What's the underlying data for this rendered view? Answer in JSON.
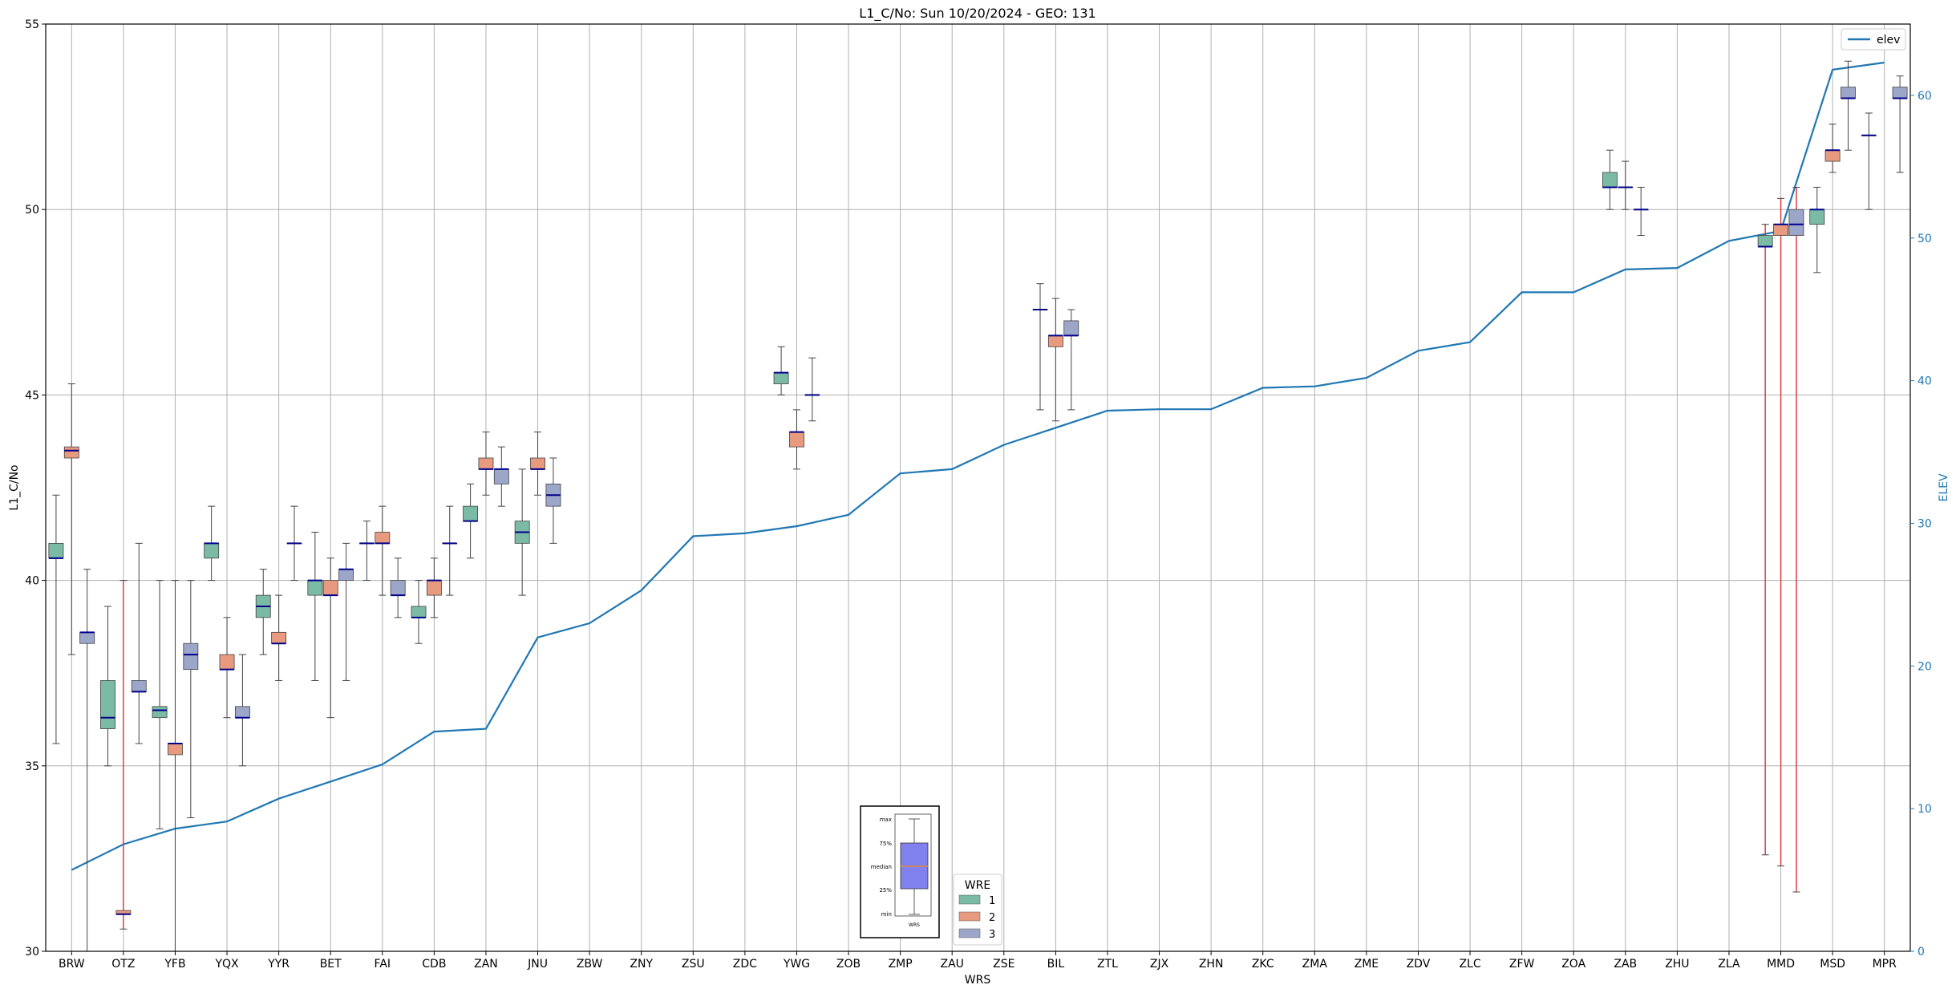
{
  "chart_data": {
    "type": "box",
    "title": "L1_C/No: Sun 10/20/2024 - GEO: 131",
    "xlabel": "WRS",
    "ylabel": "L1_C/No",
    "y2label": "ELEV",
    "ylim": [
      30,
      55
    ],
    "y2lim": [
      0,
      65
    ],
    "yticks": [
      30,
      35,
      40,
      45,
      50,
      55
    ],
    "y2ticks": [
      0,
      10,
      20,
      30,
      40,
      50,
      60
    ],
    "grid": true,
    "categories": [
      "BRW",
      "OTZ",
      "YFB",
      "YQX",
      "YYR",
      "BET",
      "FAI",
      "CDB",
      "ZAN",
      "JNU",
      "ZBW",
      "ZNY",
      "ZSU",
      "ZDC",
      "YWG",
      "ZOB",
      "ZMP",
      "ZAU",
      "ZSE",
      "BIL",
      "ZTL",
      "ZJX",
      "ZHN",
      "ZKC",
      "ZMA",
      "ZME",
      "ZDV",
      "ZLC",
      "ZFW",
      "ZOA",
      "ZAB",
      "ZHU",
      "ZLA",
      "MMD",
      "MSD",
      "MPR"
    ],
    "wre_legend": {
      "title": "WRE",
      "entries": [
        {
          "label": "1",
          "color": "#7bbba5"
        },
        {
          "label": "2",
          "color": "#e89a7e"
        },
        {
          "label": "3",
          "color": "#9ba6c9"
        }
      ]
    },
    "elev_series": {
      "name": "elev",
      "color": "#1f77b4",
      "values": [
        5.7,
        7.5,
        8.6,
        9.1,
        10.7,
        11.9,
        13.1,
        15.4,
        15.6,
        22.0,
        23.0,
        25.3,
        29.1,
        29.3,
        29.8,
        30.6,
        33.5,
        33.8,
        35.5,
        36.7,
        37.9,
        38.0,
        38.0,
        39.5,
        39.6,
        40.2,
        42.1,
        42.7,
        46.2,
        46.2,
        47.8,
        47.9,
        49.8,
        50.5,
        61.8,
        62.3
      ]
    },
    "boxes": [
      {
        "cat": "BRW",
        "wre": 1,
        "min": 35.6,
        "q1": 40.6,
        "median": 40.6,
        "q3": 41.0,
        "max": 42.3
      },
      {
        "cat": "BRW",
        "wre": 2,
        "min": 38.0,
        "q1": 43.3,
        "median": 43.5,
        "q3": 43.6,
        "max": 45.3
      },
      {
        "cat": "BRW",
        "wre": 3,
        "min": 30.0,
        "q1": 38.3,
        "median": 38.6,
        "q3": 38.6,
        "max": 40.3
      },
      {
        "cat": "OTZ",
        "wre": 1,
        "min": 35.0,
        "q1": 36.0,
        "median": 36.3,
        "q3": 37.3,
        "max": 39.3
      },
      {
        "cat": "OTZ",
        "wre": 2,
        "min": 30.6,
        "q1": 31.0,
        "median": 31.0,
        "q3": 31.1,
        "max": 40.0,
        "highlight": true
      },
      {
        "cat": "OTZ",
        "wre": 3,
        "min": 35.6,
        "q1": 37.0,
        "median": 37.0,
        "q3": 37.3,
        "max": 41.0
      },
      {
        "cat": "YFB",
        "wre": 1,
        "min": 33.3,
        "q1": 36.3,
        "median": 36.5,
        "q3": 36.6,
        "max": 40.0
      },
      {
        "cat": "YFB",
        "wre": 2,
        "min": 30.0,
        "q1": 35.3,
        "median": 35.6,
        "q3": 35.6,
        "max": 40.0
      },
      {
        "cat": "YFB",
        "wre": 3,
        "min": 33.6,
        "q1": 37.6,
        "median": 38.0,
        "q3": 38.3,
        "max": 40.0
      },
      {
        "cat": "YQX",
        "wre": 1,
        "min": 40.0,
        "q1": 40.6,
        "median": 41.0,
        "q3": 41.0,
        "max": 42.0
      },
      {
        "cat": "YQX",
        "wre": 2,
        "min": 36.3,
        "q1": 37.6,
        "median": 37.6,
        "q3": 38.0,
        "max": 39.0
      },
      {
        "cat": "YQX",
        "wre": 3,
        "min": 35.0,
        "q1": 36.3,
        "median": 36.3,
        "q3": 36.6,
        "max": 38.0
      },
      {
        "cat": "YYR",
        "wre": 1,
        "min": 38.0,
        "q1": 39.0,
        "median": 39.3,
        "q3": 39.6,
        "max": 40.3
      },
      {
        "cat": "YYR",
        "wre": 2,
        "min": 37.3,
        "q1": 38.3,
        "median": 38.3,
        "q3": 38.6,
        "max": 39.6
      },
      {
        "cat": "YYR",
        "wre": 3,
        "min": 40.0,
        "q1": 41.0,
        "median": 41.0,
        "q3": 41.0,
        "max": 42.0
      },
      {
        "cat": "BET",
        "wre": 1,
        "min": 37.3,
        "q1": 39.6,
        "median": 40.0,
        "q3": 40.0,
        "max": 41.3
      },
      {
        "cat": "BET",
        "wre": 2,
        "min": 36.3,
        "q1": 39.6,
        "median": 39.6,
        "q3": 40.0,
        "max": 40.6
      },
      {
        "cat": "BET",
        "wre": 3,
        "min": 37.3,
        "q1": 40.0,
        "median": 40.3,
        "q3": 40.3,
        "max": 41.0
      },
      {
        "cat": "FAI",
        "wre": 1,
        "min": 40.0,
        "q1": 41.0,
        "median": 41.0,
        "q3": 41.0,
        "max": 41.6
      },
      {
        "cat": "FAI",
        "wre": 2,
        "min": 39.6,
        "q1": 41.0,
        "median": 41.0,
        "q3": 41.3,
        "max": 42.0
      },
      {
        "cat": "FAI",
        "wre": 3,
        "min": 39.0,
        "q1": 39.6,
        "median": 39.6,
        "q3": 40.0,
        "max": 40.6
      },
      {
        "cat": "CDB",
        "wre": 1,
        "min": 38.3,
        "q1": 39.0,
        "median": 39.0,
        "q3": 39.3,
        "max": 40.0
      },
      {
        "cat": "CDB",
        "wre": 2,
        "min": 39.0,
        "q1": 39.6,
        "median": 40.0,
        "q3": 40.0,
        "max": 40.6
      },
      {
        "cat": "CDB",
        "wre": 3,
        "min": 39.6,
        "q1": 41.0,
        "median": 41.0,
        "q3": 41.0,
        "max": 42.0
      },
      {
        "cat": "ZAN",
        "wre": 1,
        "min": 40.6,
        "q1": 41.6,
        "median": 41.6,
        "q3": 42.0,
        "max": 42.6
      },
      {
        "cat": "ZAN",
        "wre": 2,
        "min": 42.3,
        "q1": 43.0,
        "median": 43.0,
        "q3": 43.3,
        "max": 44.0
      },
      {
        "cat": "ZAN",
        "wre": 3,
        "min": 42.0,
        "q1": 42.6,
        "median": 43.0,
        "q3": 43.0,
        "max": 43.6
      },
      {
        "cat": "JNU",
        "wre": 1,
        "min": 39.6,
        "q1": 41.0,
        "median": 41.3,
        "q3": 41.6,
        "max": 43.0
      },
      {
        "cat": "JNU",
        "wre": 2,
        "min": 42.3,
        "q1": 43.0,
        "median": 43.0,
        "q3": 43.3,
        "max": 44.0
      },
      {
        "cat": "JNU",
        "wre": 3,
        "min": 41.0,
        "q1": 42.0,
        "median": 42.3,
        "q3": 42.6,
        "max": 43.3
      },
      {
        "cat": "YWG",
        "wre": 1,
        "min": 45.0,
        "q1": 45.3,
        "median": 45.6,
        "q3": 45.6,
        "max": 46.3
      },
      {
        "cat": "YWG",
        "wre": 2,
        "min": 43.0,
        "q1": 43.6,
        "median": 44.0,
        "q3": 44.0,
        "max": 44.6
      },
      {
        "cat": "YWG",
        "wre": 3,
        "min": 44.3,
        "q1": 45.0,
        "median": 45.0,
        "q3": 45.0,
        "max": 46.0
      },
      {
        "cat": "BIL",
        "wre": 1,
        "min": 44.6,
        "q1": 47.3,
        "median": 47.3,
        "q3": 47.3,
        "max": 48.0
      },
      {
        "cat": "BIL",
        "wre": 2,
        "min": 44.3,
        "q1": 46.3,
        "median": 46.6,
        "q3": 46.6,
        "max": 47.6
      },
      {
        "cat": "BIL",
        "wre": 3,
        "min": 44.6,
        "q1": 46.6,
        "median": 46.6,
        "q3": 47.0,
        "max": 47.3
      },
      {
        "cat": "ZAB",
        "wre": 1,
        "min": 50.0,
        "q1": 50.6,
        "median": 50.6,
        "q3": 51.0,
        "max": 51.6
      },
      {
        "cat": "ZAB",
        "wre": 2,
        "min": 50.0,
        "q1": 50.6,
        "median": 50.6,
        "q3": 50.6,
        "max": 51.3
      },
      {
        "cat": "ZAB",
        "wre": 3,
        "min": 49.3,
        "q1": 50.0,
        "median": 50.0,
        "q3": 50.0,
        "max": 50.6
      },
      {
        "cat": "MMD",
        "wre": 1,
        "min": 32.6,
        "q1": 49.0,
        "median": 49.0,
        "q3": 49.3,
        "max": 49.6,
        "highlight": true
      },
      {
        "cat": "MMD",
        "wre": 2,
        "min": 32.3,
        "q1": 49.3,
        "median": 49.6,
        "q3": 49.6,
        "max": 50.3,
        "highlight": true
      },
      {
        "cat": "MMD",
        "wre": 3,
        "min": 31.6,
        "q1": 49.3,
        "median": 49.6,
        "q3": 50.0,
        "max": 50.6,
        "highlight": true
      },
      {
        "cat": "MSD",
        "wre": 1,
        "min": 48.3,
        "q1": 49.6,
        "median": 50.0,
        "q3": 50.0,
        "max": 50.6
      },
      {
        "cat": "MSD",
        "wre": 2,
        "min": 51.0,
        "q1": 51.3,
        "median": 51.6,
        "q3": 51.6,
        "max": 52.3
      },
      {
        "cat": "MSD",
        "wre": 3,
        "min": 51.6,
        "q1": 53.0,
        "median": 53.0,
        "q3": 53.3,
        "max": 54.0
      },
      {
        "cat": "MPR",
        "wre": 1,
        "min": 50.0,
        "q1": 52.0,
        "median": 52.0,
        "q3": 52.0,
        "max": 52.6
      },
      {
        "cat": "MPR",
        "wre": 3,
        "min": 51.0,
        "q1": 53.0,
        "median": 53.0,
        "q3": 53.3,
        "max": 53.6
      }
    ],
    "key_inset": {
      "labels": [
        "max",
        "75%",
        "median",
        "25%",
        "min"
      ],
      "xlabel": "WRS",
      "box_color": "#8080ee",
      "median_color": "#e08a3a"
    },
    "median_color": "#00008b",
    "highlight_whisker_color": "#e0303a",
    "legend_position": "upper-right"
  }
}
